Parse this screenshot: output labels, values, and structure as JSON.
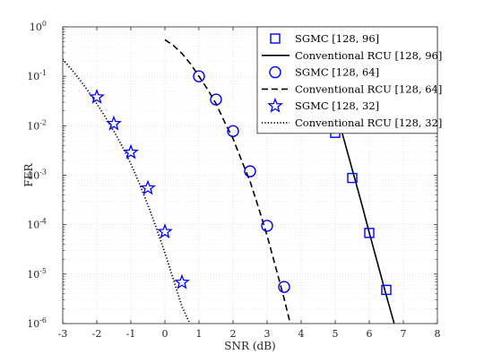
{
  "chart_data": {
    "type": "line",
    "xlabel": "SNR (dB)",
    "ylabel": "FER",
    "xlim": [
      -3,
      8
    ],
    "ylim": [
      1e-06,
      1
    ],
    "yscale": "log",
    "grid": true,
    "legend_position": "top-right",
    "x_ticks": [
      "-3",
      "-2",
      "-1",
      "0",
      "1",
      "2",
      "3",
      "4",
      "5",
      "6",
      "7",
      "8"
    ],
    "y_ticks": [
      {
        "base": "10",
        "exp": "-6"
      },
      {
        "base": "10",
        "exp": "-5"
      },
      {
        "base": "10",
        "exp": "-4"
      },
      {
        "base": "10",
        "exp": "-3"
      },
      {
        "base": "10",
        "exp": "-2"
      },
      {
        "base": "10",
        "exp": "-1"
      },
      {
        "base": "10",
        "exp": "0"
      }
    ],
    "series": [
      {
        "name": "SGMC [128, 96]",
        "kind": "markers",
        "marker": "square",
        "color": "#0000ff",
        "x": [
          5.0,
          5.5,
          6.0,
          6.5
        ],
        "y": [
          0.0072,
          0.00088,
          6.8e-05,
          4.8e-06
        ]
      },
      {
        "name": "Conventional RCU [128, 96]",
        "kind": "line",
        "line_style": "solid",
        "color": "#000000",
        "x": [
          4.75,
          5.0,
          5.25,
          5.5,
          5.75,
          6.0,
          6.25,
          6.5,
          6.75,
          6.88
        ],
        "y": [
          0.1,
          0.022,
          0.0055,
          0.0013,
          0.00031,
          6.9e-05,
          1.6e-05,
          3.7e-06,
          9e-07,
          1e-06
        ]
      },
      {
        "name": "SGMC [128, 64]",
        "kind": "markers",
        "marker": "circle",
        "color": "#0000ff",
        "x": [
          1.0,
          1.5,
          2.0,
          2.5,
          3.0,
          3.5
        ],
        "y": [
          0.1,
          0.034,
          0.0078,
          0.0012,
          9.5e-05,
          5.5e-06
        ]
      },
      {
        "name": "Conventional RCU [128, 64]",
        "kind": "line",
        "line_style": "dashed",
        "color": "#000000",
        "x": [
          0.0,
          0.25,
          0.5,
          0.75,
          1.0,
          1.25,
          1.5,
          1.75,
          2.0,
          2.25,
          2.5,
          2.75,
          3.0,
          3.25,
          3.5,
          3.68
        ],
        "y": [
          0.55,
          0.42,
          0.29,
          0.18,
          0.1,
          0.055,
          0.028,
          0.012,
          0.0055,
          0.002,
          0.00075,
          0.00022,
          6e-05,
          1.4e-05,
          3.2e-06,
          1e-06
        ]
      },
      {
        "name": "SGMC [128, 32]",
        "kind": "markers",
        "marker": "pentagram",
        "color": "#0000ff",
        "x": [
          -2.0,
          -1.5,
          -1.0,
          -0.5,
          0.0,
          0.5
        ],
        "y": [
          0.038,
          0.011,
          0.0029,
          0.00055,
          7.2e-05,
          6.8e-06
        ]
      },
      {
        "name": "Conventional RCU [128, 32]",
        "kind": "line",
        "line_style": "dotted",
        "color": "#000000",
        "x": [
          -3.0,
          -2.75,
          -2.5,
          -2.25,
          -2.0,
          -1.75,
          -1.5,
          -1.25,
          -1.0,
          -0.75,
          -0.5,
          -0.25,
          0.0,
          0.25,
          0.5,
          0.75
        ],
        "y": [
          0.22,
          0.14,
          0.085,
          0.05,
          0.028,
          0.015,
          0.0078,
          0.0038,
          0.0017,
          0.00068,
          0.00025,
          8.5e-05,
          2.7e-05,
          7.8e-06,
          2.2e-06,
          9.5e-07
        ]
      }
    ]
  }
}
